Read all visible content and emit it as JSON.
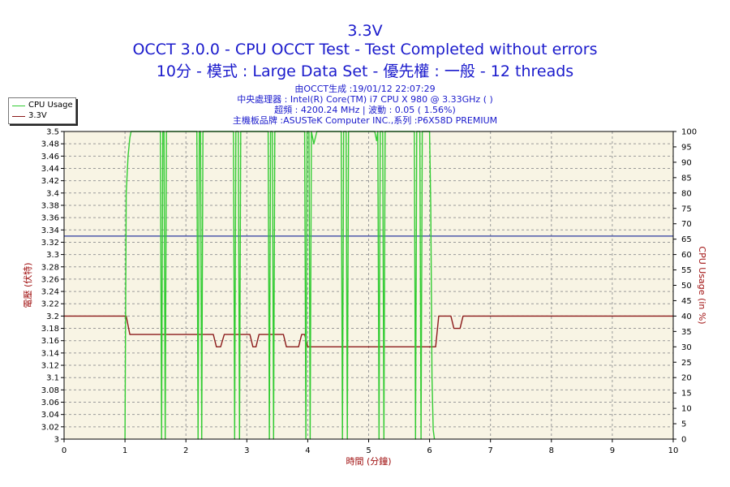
{
  "header": {
    "title": "3.3V",
    "subtitle_line1": "OCCT 3.0.0 - CPU OCCT Test - Test Completed without errors",
    "subtitle_line2": "10分 - 模式 : Large Data Set - 優先權 : 一般 - 12 threads"
  },
  "info": {
    "line1": "由OCCT生成 :19/01/12 22:07:29",
    "line2": "中央處理器 : Intel(R) Core(TM) i7 CPU X 980 @ 3.33GHz (  )",
    "line3": "超頻 : 4200.24 MHz | 波動 : 0.05 ( 1.56%)",
    "line4": "主機板品牌 :ASUSTeK Computer INC.,系列 :P6X58D PREMIUM"
  },
  "legend": {
    "cpu_usage": "CPU Usage",
    "voltage": "3.3V"
  },
  "colors": {
    "cpu_usage": "#33cc33",
    "voltage": "#8b1a1a",
    "reference_line": "#2b3aa0",
    "plot_bg": "#f8f4e4",
    "title": "#1a1acc",
    "axis_label": "#a01010"
  },
  "chart_data": {
    "type": "line",
    "xlabel": "時間 (分鐘)",
    "ylabel_left": "電壓 (伏特)",
    "ylabel_right": "CPU Usage (in %)",
    "xlim": [
      0,
      10
    ],
    "ylim_left": [
      3.0,
      3.5
    ],
    "ylim_right": [
      0,
      100
    ],
    "x_ticks": [
      "0",
      "1",
      "2",
      "3",
      "4",
      "5",
      "6",
      "7",
      "8",
      "9",
      "10"
    ],
    "y_left_ticks": [
      "3",
      "3.02",
      "3.04",
      "3.06",
      "3.08",
      "3.1",
      "3.12",
      "3.14",
      "3.16",
      "3.18",
      "3.2",
      "3.22",
      "3.24",
      "3.26",
      "3.28",
      "3.3",
      "3.32",
      "3.34",
      "3.36",
      "3.38",
      "3.4",
      "3.42",
      "3.44",
      "3.46",
      "3.48",
      "3.5"
    ],
    "y_right_ticks": [
      "0",
      "5",
      "10",
      "15",
      "20",
      "25",
      "30",
      "35",
      "40",
      "45",
      "50",
      "55",
      "60",
      "65",
      "70",
      "75",
      "80",
      "85",
      "90",
      "95",
      "100"
    ],
    "grid": true,
    "reference_line": {
      "axis": "left",
      "value": 3.33
    },
    "series": [
      {
        "name": "3.3V",
        "axis": "left",
        "points": [
          [
            0,
            3.2
          ],
          [
            1.02,
            3.2
          ],
          [
            1.08,
            3.17
          ],
          [
            2.45,
            3.17
          ],
          [
            2.5,
            3.15
          ],
          [
            2.57,
            3.15
          ],
          [
            2.63,
            3.17
          ],
          [
            3.05,
            3.17
          ],
          [
            3.1,
            3.15
          ],
          [
            3.15,
            3.15
          ],
          [
            3.2,
            3.17
          ],
          [
            3.6,
            3.17
          ],
          [
            3.65,
            3.15
          ],
          [
            3.85,
            3.15
          ],
          [
            3.9,
            3.17
          ],
          [
            3.95,
            3.17
          ],
          [
            4.0,
            3.15
          ],
          [
            6.1,
            3.15
          ],
          [
            6.15,
            3.2
          ],
          [
            6.35,
            3.2
          ],
          [
            6.4,
            3.18
          ],
          [
            6.5,
            3.18
          ],
          [
            6.55,
            3.2
          ],
          [
            10,
            3.2
          ]
        ]
      },
      {
        "name": "CPU Usage",
        "axis": "right",
        "points": [
          [
            1.0,
            0
          ],
          [
            1.02,
            80
          ],
          [
            1.05,
            92
          ],
          [
            1.08,
            98
          ],
          [
            1.1,
            100
          ],
          [
            1.58,
            100
          ],
          [
            1.6,
            0
          ],
          [
            1.62,
            100
          ],
          [
            1.64,
            100
          ],
          [
            1.66,
            0
          ],
          [
            1.68,
            100
          ],
          [
            2.18,
            100
          ],
          [
            2.2,
            0
          ],
          [
            2.22,
            100
          ],
          [
            2.24,
            100
          ],
          [
            2.26,
            0
          ],
          [
            2.28,
            100
          ],
          [
            2.78,
            100
          ],
          [
            2.8,
            0
          ],
          [
            2.82,
            100
          ],
          [
            2.86,
            100
          ],
          [
            2.88,
            0
          ],
          [
            2.9,
            100
          ],
          [
            3.35,
            100
          ],
          [
            3.37,
            0
          ],
          [
            3.39,
            100
          ],
          [
            3.42,
            100
          ],
          [
            3.44,
            0
          ],
          [
            3.46,
            100
          ],
          [
            3.95,
            100
          ],
          [
            3.97,
            0
          ],
          [
            3.99,
            100
          ],
          [
            4.02,
            100
          ],
          [
            4.04,
            0
          ],
          [
            4.06,
            100
          ],
          [
            4.1,
            96
          ],
          [
            4.15,
            100
          ],
          [
            4.55,
            100
          ],
          [
            4.57,
            0
          ],
          [
            4.59,
            100
          ],
          [
            4.63,
            100
          ],
          [
            4.65,
            0
          ],
          [
            4.67,
            100
          ],
          [
            5.1,
            100
          ],
          [
            5.13,
            97
          ],
          [
            5.15,
            100
          ],
          [
            5.17,
            0
          ],
          [
            5.19,
            100
          ],
          [
            5.23,
            100
          ],
          [
            5.25,
            0
          ],
          [
            5.27,
            100
          ],
          [
            5.75,
            100
          ],
          [
            5.77,
            0
          ],
          [
            5.79,
            100
          ],
          [
            5.84,
            100
          ],
          [
            5.86,
            0
          ],
          [
            5.88,
            100
          ],
          [
            6.0,
            100
          ],
          [
            6.02,
            75
          ],
          [
            6.04,
            20
          ],
          [
            6.06,
            3
          ],
          [
            6.08,
            0
          ]
        ]
      }
    ]
  }
}
